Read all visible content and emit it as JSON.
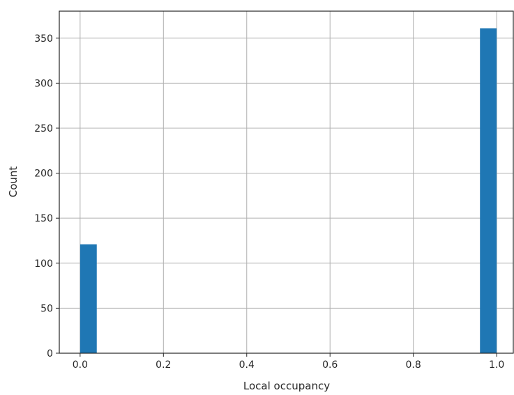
{
  "chart_data": {
    "type": "bar",
    "title": "",
    "xlabel": "Local occupancy",
    "ylabel": "Count",
    "xlim": [
      -0.05,
      1.04
    ],
    "ylim": [
      0,
      380
    ],
    "x_ticks": [
      0.0,
      0.2,
      0.4,
      0.6,
      0.8,
      1.0
    ],
    "x_tick_labels": [
      "0.0",
      "0.2",
      "0.4",
      "0.6",
      "0.8",
      "1.0"
    ],
    "y_ticks": [
      0,
      50,
      100,
      150,
      200,
      250,
      300,
      350
    ],
    "y_tick_labels": [
      "0",
      "50",
      "100",
      "150",
      "200",
      "250",
      "300",
      "350"
    ],
    "grid": true,
    "bin_width": 0.04,
    "bars": [
      {
        "x_start": 0.0,
        "x_end": 0.04,
        "value": 121
      },
      {
        "x_start": 0.96,
        "x_end": 1.0,
        "value": 361
      }
    ],
    "colors": {
      "bar": "#1f77b4"
    }
  }
}
